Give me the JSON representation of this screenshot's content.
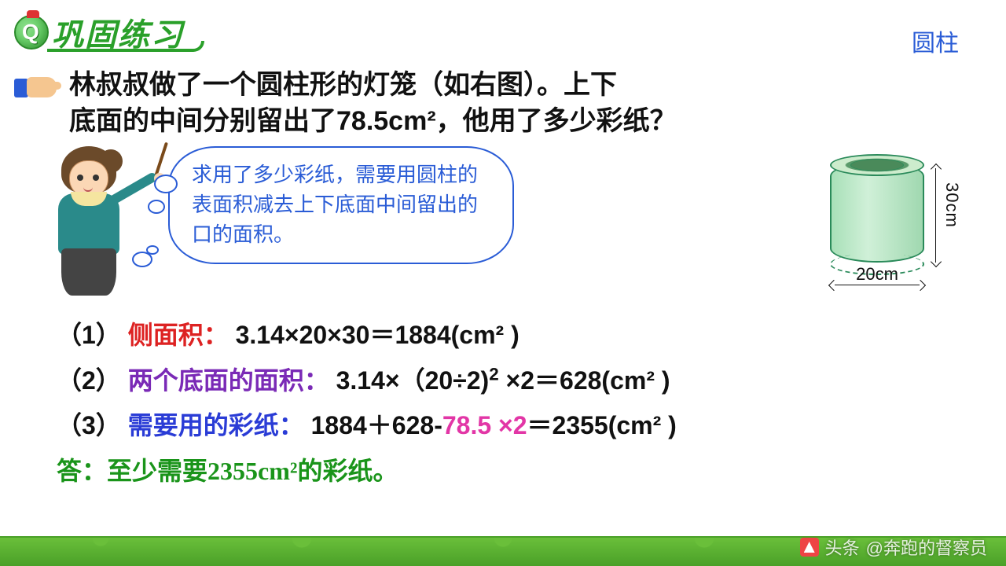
{
  "header": {
    "title": "巩固练习",
    "icon_letter": "Q"
  },
  "topic": "圆柱",
  "question": {
    "line1": "林叔叔做了一个圆柱形的灯笼（如右图）。上下",
    "line2": "底面的中间分别留出了78.5cm²，他用了多少彩纸？"
  },
  "bubble": "求用了多少彩纸，需要用圆柱的表面积减去上下底面中间留出的口的面积。",
  "cylinder": {
    "height_label": "30cm",
    "diameter_label": "20cm"
  },
  "steps": {
    "s1_num": "（1）",
    "s1_label": "侧面积：",
    "s1_expr": "3.14×20×30＝1884(cm² )",
    "s2_num": "（2）",
    "s2_label": "两个底面的面积：",
    "s2_expr_a": "3.14×（20÷2)",
    "s2_expr_b": "×2＝628(cm² )",
    "s3_num": "（3）",
    "s3_label": "需要用的彩纸：",
    "s3_a": "1884＋628-",
    "s3_mag": "78.5 ×2",
    "s3_b": "＝2355(cm² )",
    "answer": "答：至少需要2355cm²的彩纸。"
  },
  "watermark": {
    "prefix": "头条",
    "author": "@奔跑的督察员"
  },
  "colors": {
    "green": "#2aa02a",
    "blue": "#2a5cd6",
    "red": "#d22222",
    "purple": "#7a2ab6",
    "magenta": "#e236a6",
    "text": "#111111"
  }
}
